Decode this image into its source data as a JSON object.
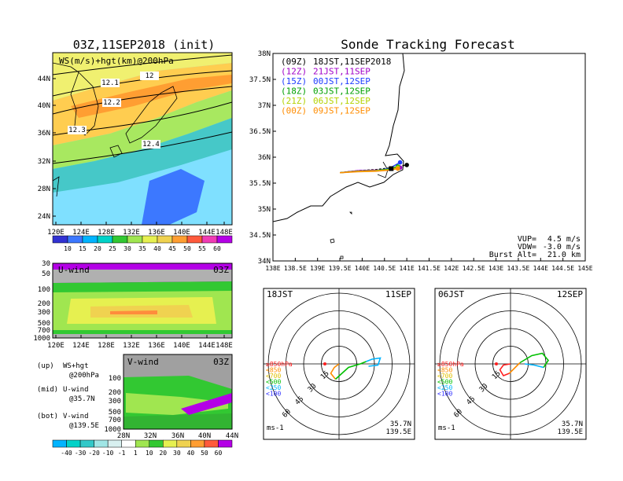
{
  "left": {
    "title": "03Z,11SEP2018 (init)",
    "map": {
      "label": "WS(m/s)+hgt(km)@200hPa",
      "lat_labels": [
        "44N",
        "40N",
        "36N",
        "32N",
        "28N",
        "24N"
      ],
      "lon_labels": [
        "120E",
        "124E",
        "128E",
        "132E",
        "136E",
        "140E",
        "144E",
        "148E"
      ],
      "contour_labels": [
        "12",
        "12.1",
        "12.2",
        "12.3",
        "12.4"
      ]
    },
    "ws_colorbar": {
      "labels": [
        "10",
        "15",
        "20",
        "25",
        "30",
        "35",
        "40",
        "45",
        "50",
        "55",
        "60"
      ]
    },
    "uwind": {
      "label": "U-wind",
      "time": "03Z",
      "p_labels": [
        "30",
        "50",
        "100",
        "200",
        "300",
        "500",
        "700",
        "1000"
      ],
      "lon_labels": [
        "120E",
        "124E",
        "128E",
        "132E",
        "136E",
        "140E",
        "144E",
        "148E"
      ]
    },
    "vwind": {
      "label": "V-wind",
      "time": "03Z",
      "p_labels": [
        "100",
        "200",
        "300",
        "500",
        "700",
        "1000"
      ],
      "lat_labels": [
        "28N",
        "32N",
        "36N",
        "40N",
        "44N"
      ]
    },
    "notes": [
      {
        "tag": "(up)",
        "text": "WS+hgt",
        "sub": "@200hPa"
      },
      {
        "tag": "(mid)",
        "text": "U-wind",
        "sub": "@35.7N"
      },
      {
        "tag": "(bot)",
        "text": "V-wind",
        "sub": "@139.5E"
      }
    ],
    "wind_colorbar": {
      "labels": [
        "-40",
        "-30",
        "-20",
        "-10",
        "-1",
        "1",
        "10",
        "20",
        "30",
        "40",
        "50",
        "60"
      ]
    }
  },
  "right": {
    "title": "Sonde Tracking Forecast",
    "trajectory_map": {
      "lat_labels": [
        "38N",
        "37.5N",
        "37N",
        "36.5N",
        "36N",
        "35.5N",
        "35N",
        "34.5N",
        "34N"
      ],
      "lon_labels": [
        "138E",
        "138.5E",
        "139E",
        "139.5E",
        "140E",
        "140.5E",
        "141E",
        "141.5E",
        "142E",
        "142.5E",
        "143E",
        "143.5E",
        "144E",
        "144.5E",
        "145E"
      ],
      "legend": [
        {
          "code": "(09Z)",
          "label": "18JST,11SEP2018",
          "color": "#000000"
        },
        {
          "code": "(12Z)",
          "label": "21JST,11SEP",
          "color": "#a000c8"
        },
        {
          "code": "(15Z)",
          "label": "00JST,12SEP",
          "color": "#1e3cff"
        },
        {
          "code": "(18Z)",
          "label": "03JST,12SEP",
          "color": "#00a000"
        },
        {
          "code": "(21Z)",
          "label": "06JST,12SEP",
          "color": "#b4d200"
        },
        {
          "code": "(00Z)",
          "label": "09JST,12SEP",
          "color": "#ff8c00"
        }
      ],
      "params": [
        {
          "label": "VUP=",
          "value": "4.5 m/s"
        },
        {
          "label": "VDW=",
          "value": "-3.0 m/s"
        },
        {
          "label": "Burst Alt=",
          "value": "21.0 km"
        }
      ]
    },
    "hodographs": [
      {
        "time": "18JST",
        "date": "11SEP",
        "lat": "35.7N",
        "lon": "139.5E",
        "unit": "ms-1"
      },
      {
        "time": "06JST",
        "date": "12SEP",
        "lat": "35.7N",
        "lon": "139.5E",
        "unit": "ms-1"
      }
    ],
    "hodo_rings": [
      "15",
      "30",
      "45",
      "60"
    ],
    "hodo_levels": [
      {
        "label": "≥850hPa",
        "color": "#ff2020"
      },
      {
        "label": "<850",
        "color": "#ff8c00"
      },
      {
        "label": "<700",
        "color": "#e0c000"
      },
      {
        "label": "<500",
        "color": "#00c000"
      },
      {
        "label": "<250",
        "color": "#00b4ff"
      },
      {
        "label": "<100",
        "color": "#3030ff"
      }
    ]
  },
  "chart_data": [
    {
      "type": "heatmap",
      "title": "03Z,11SEP2018 (init)",
      "annotation": "WS(m/s)+hgt(km)@200hPa",
      "xlim": [
        "120E",
        "150E"
      ],
      "ylim": [
        "22N",
        "48N"
      ],
      "colorbar": [
        10,
        15,
        20,
        25,
        30,
        35,
        40,
        45,
        50,
        55,
        60
      ],
      "contours_km": [
        12,
        12.1,
        12.2,
        12.3,
        12.4
      ]
    },
    {
      "type": "line",
      "title": "Sonde Tracking Forecast",
      "xlim": [
        138,
        145
      ],
      "ylim": [
        34,
        38
      ],
      "series": [
        {
          "name": "(09Z) 18JST,11SEP2018",
          "color": "#000000",
          "x": [
            139.5,
            139.9,
            140.3,
            140.7,
            141.0
          ],
          "y": [
            35.7,
            35.74,
            35.76,
            35.8,
            35.85
          ]
        },
        {
          "name": "(12Z) 21JST,11SEP",
          "color": "#a000c8",
          "x": [
            139.5,
            139.9,
            140.3,
            140.6,
            140.85
          ],
          "y": [
            35.7,
            35.74,
            35.75,
            35.76,
            35.8
          ]
        },
        {
          "name": "(15Z) 00JST,12SEP",
          "color": "#1e3cff",
          "x": [
            139.5,
            139.9,
            140.3,
            140.6,
            140.85
          ],
          "y": [
            35.7,
            35.73,
            35.74,
            35.78,
            35.9
          ]
        },
        {
          "name": "(18Z) 03JST,12SEP",
          "color": "#00a000",
          "x": [
            139.5,
            139.9,
            140.3,
            140.6,
            140.8
          ],
          "y": [
            35.7,
            35.73,
            35.74,
            35.77,
            35.82
          ]
        },
        {
          "name": "(21Z) 06JST,12SEP",
          "color": "#b4d200",
          "x": [
            139.5,
            139.9,
            140.3,
            140.6,
            140.8
          ],
          "y": [
            35.7,
            35.73,
            35.74,
            35.76,
            35.8
          ]
        },
        {
          "name": "(00Z) 09JST,12SEP",
          "color": "#ff8c00",
          "x": [
            139.5,
            139.9,
            140.3,
            140.6,
            140.8
          ],
          "y": [
            35.7,
            35.72,
            35.73,
            35.75,
            35.78
          ]
        }
      ]
    },
    {
      "type": "line",
      "title": "18JST 11SEP hodograph",
      "rings_ms": [
        15,
        30,
        45,
        60
      ],
      "series": [
        {
          "name": "<850",
          "color": "#ff8c00",
          "u": [
            0,
            -4,
            -7,
            -3
          ],
          "v": [
            0,
            -3,
            -8,
            -13
          ]
        },
        {
          "name": "<500",
          "color": "#00c000",
          "u": [
            -3,
            8,
            18,
            23
          ],
          "v": [
            -13,
            -3,
            0,
            2
          ]
        },
        {
          "name": "<250",
          "color": "#00b4ff",
          "u": [
            23,
            28,
            35,
            33,
            25
          ],
          "v": [
            2,
            4,
            5,
            -1,
            -2
          ]
        }
      ]
    },
    {
      "type": "line",
      "title": "06JST 12SEP hodograph",
      "rings_ms": [
        15,
        30,
        45,
        60
      ],
      "series": [
        {
          "name": "≥850hPa",
          "color": "#ff2020",
          "u": [
            0,
            -6,
            -9,
            -6,
            -1
          ],
          "v": [
            0,
            -1,
            -5,
            -10,
            -8
          ]
        },
        {
          "name": "<850",
          "color": "#ff8c00",
          "u": [
            -1,
            4,
            8
          ],
          "v": [
            -8,
            -3,
            1
          ]
        },
        {
          "name": "<500",
          "color": "#00c000",
          "u": [
            8,
            18,
            27,
            32,
            28
          ],
          "v": [
            1,
            7,
            9,
            3,
            -3
          ]
        },
        {
          "name": "<250",
          "color": "#00b4ff",
          "u": [
            28,
            20,
            12
          ],
          "v": [
            -3,
            -1,
            0
          ]
        }
      ]
    }
  ]
}
